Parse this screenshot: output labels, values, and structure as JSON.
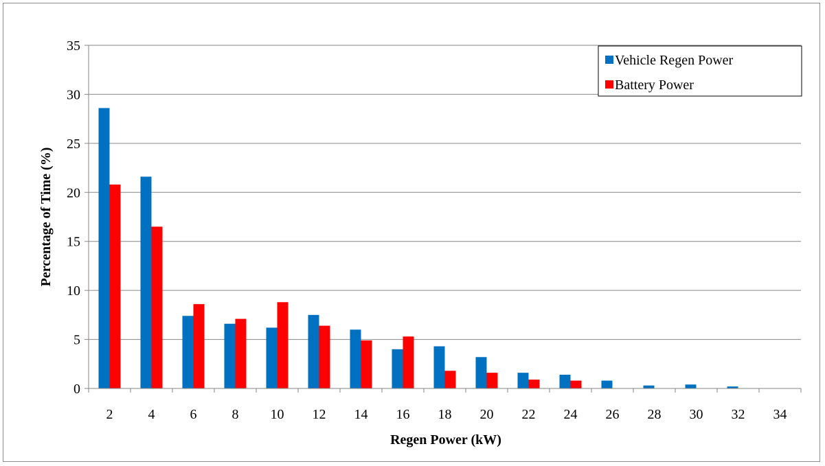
{
  "chart_data": {
    "type": "bar",
    "title": "",
    "xlabel": "Regen Power (kW)",
    "ylabel": "Percentage of Time (%)",
    "categories": [
      "2",
      "4",
      "6",
      "8",
      "10",
      "12",
      "14",
      "16",
      "18",
      "20",
      "22",
      "24",
      "26",
      "28",
      "30",
      "32",
      "34"
    ],
    "ylim": [
      0,
      35
    ],
    "yticks": [
      0,
      5,
      10,
      15,
      20,
      25,
      30,
      35
    ],
    "grid": "horizontal",
    "legend_position": "top-right",
    "series": [
      {
        "name": "Vehicle Regen Power",
        "color": "#0070c0",
        "values": [
          28.6,
          21.6,
          7.4,
          6.6,
          6.2,
          7.5,
          6.0,
          4.0,
          4.3,
          3.2,
          1.6,
          1.4,
          0.8,
          0.3,
          0.4,
          0.2,
          0
        ]
      },
      {
        "name": "Battery Power",
        "color": "#ff0000",
        "values": [
          20.8,
          16.5,
          8.6,
          7.1,
          8.8,
          6.4,
          4.9,
          5.3,
          1.8,
          1.6,
          0.9,
          0.8,
          0,
          0,
          0,
          0,
          0
        ]
      }
    ]
  }
}
